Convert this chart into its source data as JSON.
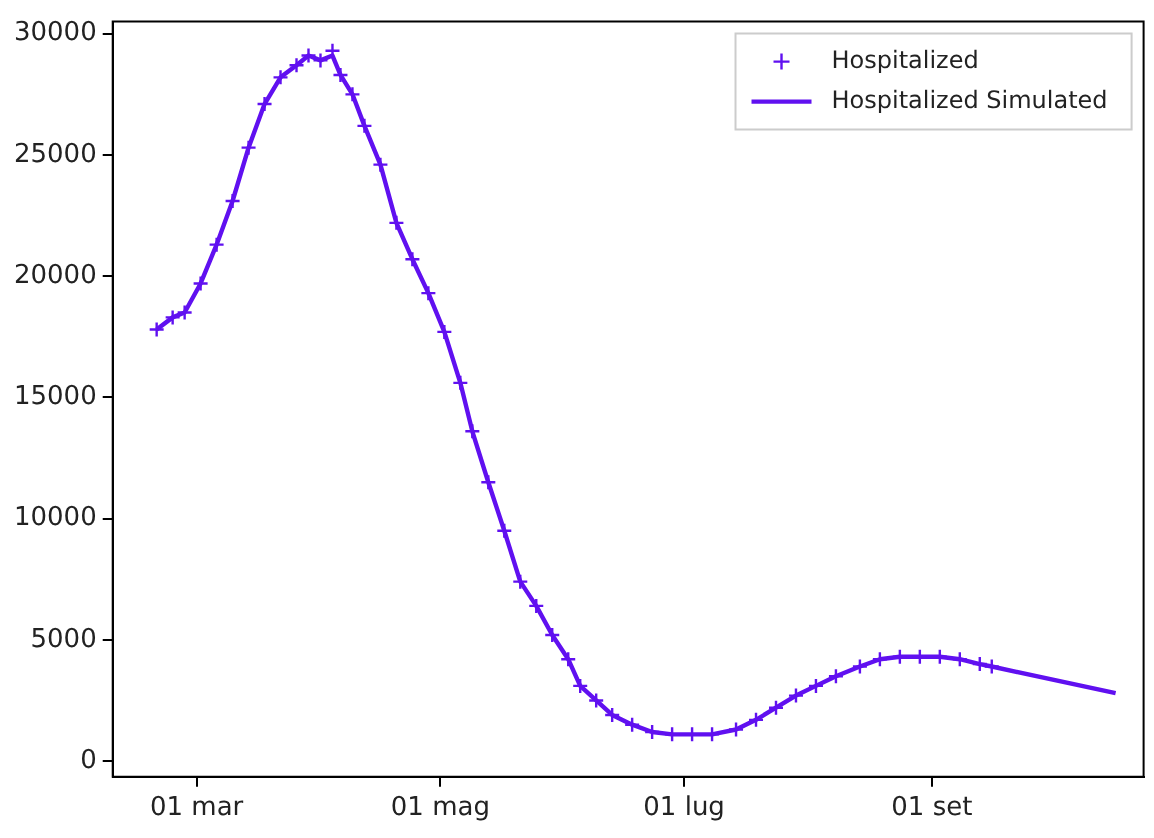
{
  "chart_data": {
    "type": "line",
    "legend": "top right",
    "xlim": [
      "--02-08",
      "--10-24"
    ],
    "xticks": [
      {
        "value": "--03-01",
        "label": "01 mar"
      },
      {
        "value": "--05-01",
        "label": "01 mag"
      },
      {
        "value": "--07-01",
        "label": "01 lug"
      },
      {
        "value": "--09-01",
        "label": "01 set"
      }
    ],
    "ylim": [
      -650,
      30500
    ],
    "yticks": [
      0,
      5000,
      10000,
      15000,
      20000,
      25000,
      30000
    ],
    "series": [
      {
        "name": "Hospitalized",
        "type": "scatter",
        "marker": "cross",
        "color": "#6010f0",
        "x": [
          "--02-19",
          "--02-23",
          "--02-26",
          "--03-02",
          "--03-06",
          "--03-10",
          "--03-14",
          "--03-18",
          "--03-22",
          "--03-26",
          "--03-29",
          "--04-01",
          "--04-04",
          "--04-06",
          "--04-09",
          "--04-12",
          "--04-16",
          "--04-20",
          "--04-24",
          "--04-28",
          "--05-02",
          "--05-06",
          "--05-09",
          "--05-13",
          "--05-17",
          "--05-21",
          "--05-25",
          "--05-29",
          "--06-02",
          "--06-05",
          "--06-09",
          "--06-13",
          "--06-18",
          "--06-23",
          "--06-28",
          "--07-03",
          "--07-08",
          "--07-14",
          "--07-19",
          "--07-24",
          "--07-29",
          "--08-03",
          "--08-08",
          "--08-14",
          "--08-19",
          "--08-24",
          "--08-29",
          "--09-03",
          "--09-08",
          "--09-13",
          "--09-16"
        ],
        "values": [
          17800,
          18300,
          18500,
          19700,
          21300,
          23100,
          25300,
          27100,
          28200,
          28700,
          29100,
          28900,
          29300,
          28300,
          27500,
          26200,
          24600,
          22200,
          20700,
          19300,
          17700,
          15600,
          13600,
          11500,
          9500,
          7400,
          6400,
          5200,
          4200,
          3100,
          2500,
          1900,
          1500,
          1200,
          1100,
          1100,
          1100,
          1300,
          1700,
          2200,
          2700,
          3100,
          3500,
          3900,
          4200,
          4300,
          4300,
          4300,
          4200,
          4000,
          3900
        ]
      },
      {
        "name": "Hospitalized Simulated",
        "type": "line",
        "marker": "none",
        "color": "#6010f0",
        "x": [
          "--02-19",
          "--02-23",
          "--02-26",
          "--03-02",
          "--03-06",
          "--03-10",
          "--03-14",
          "--03-18",
          "--03-22",
          "--03-26",
          "--03-29",
          "--04-01",
          "--04-04",
          "--04-06",
          "--04-09",
          "--04-12",
          "--04-16",
          "--04-20",
          "--04-24",
          "--04-28",
          "--05-02",
          "--05-06",
          "--05-09",
          "--05-13",
          "--05-17",
          "--05-21",
          "--05-25",
          "--05-29",
          "--06-02",
          "--06-05",
          "--06-09",
          "--06-13",
          "--06-18",
          "--06-23",
          "--06-28",
          "--07-03",
          "--07-08",
          "--07-14",
          "--07-19",
          "--07-24",
          "--07-29",
          "--08-03",
          "--08-08",
          "--08-14",
          "--08-19",
          "--08-24",
          "--08-29",
          "--09-03",
          "--09-08",
          "--09-13",
          "--09-16",
          "--10-17"
        ],
        "values": [
          17800,
          18300,
          18500,
          19700,
          21300,
          23100,
          25300,
          27100,
          28200,
          28700,
          29100,
          28900,
          29100,
          28300,
          27500,
          26200,
          24600,
          22200,
          20700,
          19300,
          17700,
          15600,
          13600,
          11500,
          9500,
          7400,
          6400,
          5200,
          4200,
          3100,
          2500,
          1900,
          1500,
          1200,
          1100,
          1100,
          1100,
          1300,
          1700,
          2200,
          2700,
          3100,
          3500,
          3900,
          4200,
          4300,
          4300,
          4300,
          4200,
          4000,
          3900,
          2800
        ]
      }
    ]
  }
}
